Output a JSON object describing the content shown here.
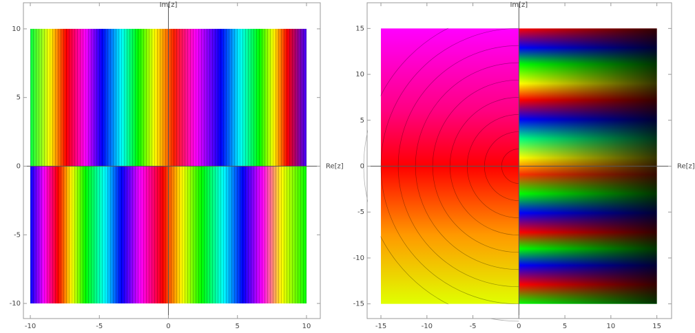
{
  "chart_data": [
    {
      "type": "domain",
      "xlabel": "Re[z]",
      "ylabel": "Im[z]",
      "xlim": [
        -10.5,
        11
      ],
      "ylim": [
        -11.1,
        11.9
      ],
      "xrange": [
        -10,
        10
      ],
      "yrange": [
        -10,
        10
      ],
      "xticks": [
        -10,
        -5,
        0,
        5,
        10
      ],
      "yticks": [
        -10,
        -5,
        0,
        5,
        10
      ]
    },
    {
      "type": "domain",
      "xlabel": "Re[z]",
      "ylabel": "Im[z]",
      "xlim": [
        -16.5,
        16.6
      ],
      "ylim": [
        -16.6,
        17.8
      ],
      "xrange": [
        -15,
        15
      ],
      "yrange": [
        -15,
        15
      ],
      "xticks": [
        -15,
        -10,
        -5,
        0,
        5,
        10,
        15
      ],
      "yticks": [
        -15,
        -10,
        -5,
        0,
        5,
        10,
        15
      ]
    }
  ]
}
